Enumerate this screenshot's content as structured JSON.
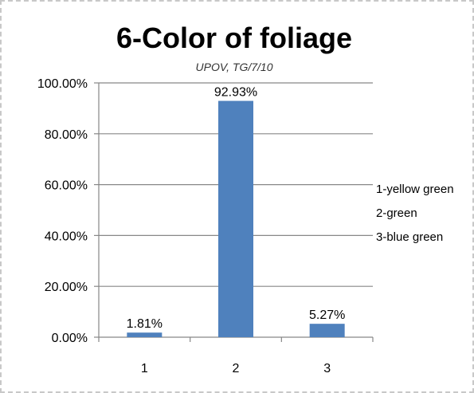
{
  "chart_data": {
    "type": "bar",
    "title": "6-Color of foliage",
    "subtitle": "UPOV, TG/7/10",
    "categories": [
      "1",
      "2",
      "3"
    ],
    "values": [
      1.81,
      92.93,
      5.27
    ],
    "data_labels": [
      "1.81%",
      "92.93%",
      "5.27%"
    ],
    "ylim": [
      0,
      100
    ],
    "yticks": [
      0,
      20,
      40,
      60,
      80,
      100
    ],
    "ytick_labels": [
      "0.00%",
      "20.00%",
      "40.00%",
      "60.00%",
      "80.00%",
      "100.00%"
    ],
    "grid": true,
    "legend_position": "right",
    "legend_entries": [
      "1-yellow green",
      "2-green",
      "3-blue green"
    ],
    "bar_color": "#4f81bd",
    "grid_color": "#878787"
  }
}
